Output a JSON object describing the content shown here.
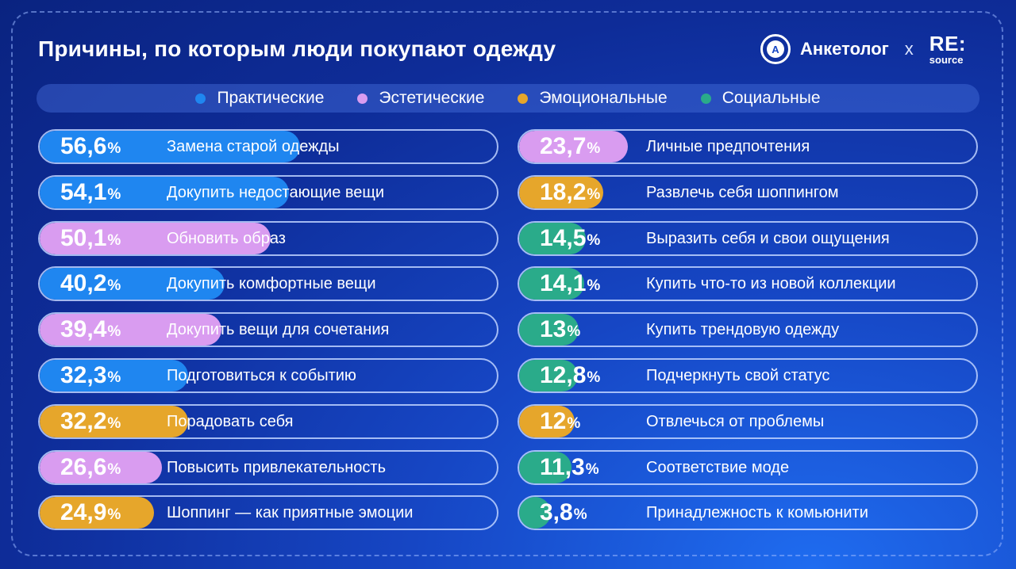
{
  "title": "Причины, по которым люди покупают одежду",
  "brand": {
    "logo_letter": "A",
    "name": "Анкетолог",
    "times": "x",
    "partner_top": "RE:",
    "partner_bottom": "source"
  },
  "colors": {
    "practical": "#1f86f0",
    "aesthetic": "#d99cf0",
    "emotional": "#e6a62b",
    "social": "#2aab8a"
  },
  "legend": [
    {
      "key": "practical",
      "label": "Практические"
    },
    {
      "key": "aesthetic",
      "label": "Эстетические"
    },
    {
      "key": "emotional",
      "label": "Эмоциональные"
    },
    {
      "key": "social",
      "label": "Социальные"
    }
  ],
  "chart_data": {
    "type": "bar",
    "unit": "%",
    "max": 100,
    "columns": [
      [
        {
          "value": "56,6",
          "label": "Замена старой одежды",
          "category": "practical"
        },
        {
          "value": "54,1",
          "label": "Докупить недостающие вещи",
          "category": "practical"
        },
        {
          "value": "50,1",
          "label": "Обновить образ",
          "category": "aesthetic"
        },
        {
          "value": "40,2",
          "label": "Докупить комфортные вещи",
          "category": "practical"
        },
        {
          "value": "39,4",
          "label": "Докупить вещи для сочетания",
          "category": "aesthetic"
        },
        {
          "value": "32,3",
          "label": "Подготовиться к событию",
          "category": "practical"
        },
        {
          "value": "32,2",
          "label": "Порадовать себя",
          "category": "emotional"
        },
        {
          "value": "26,6",
          "label": "Повысить привлекательность",
          "category": "aesthetic"
        },
        {
          "value": "24,9",
          "label": "Шоппинг — как приятные эмоции",
          "category": "emotional"
        }
      ],
      [
        {
          "value": "23,7",
          "label": "Личные предпочтения",
          "category": "aesthetic"
        },
        {
          "value": "18,2",
          "label": "Развлечь себя шоппингом",
          "category": "emotional"
        },
        {
          "value": "14,5",
          "label": "Выразить себя и свои ощущения",
          "category": "social"
        },
        {
          "value": "14,1",
          "label": "Купить что-то из новой коллекции",
          "category": "social"
        },
        {
          "value": "13",
          "label": "Купить трендовую одежду",
          "category": "social"
        },
        {
          "value": "12,8",
          "label": "Подчеркнуть свой статус",
          "category": "social"
        },
        {
          "value": "12",
          "label": "Отвлечься от проблемы",
          "category": "emotional"
        },
        {
          "value": "11,3",
          "label": "Соответствие моде",
          "category": "social"
        },
        {
          "value": "3,8",
          "label": "Принадлежность к комьюнити",
          "category": "social"
        }
      ]
    ]
  }
}
